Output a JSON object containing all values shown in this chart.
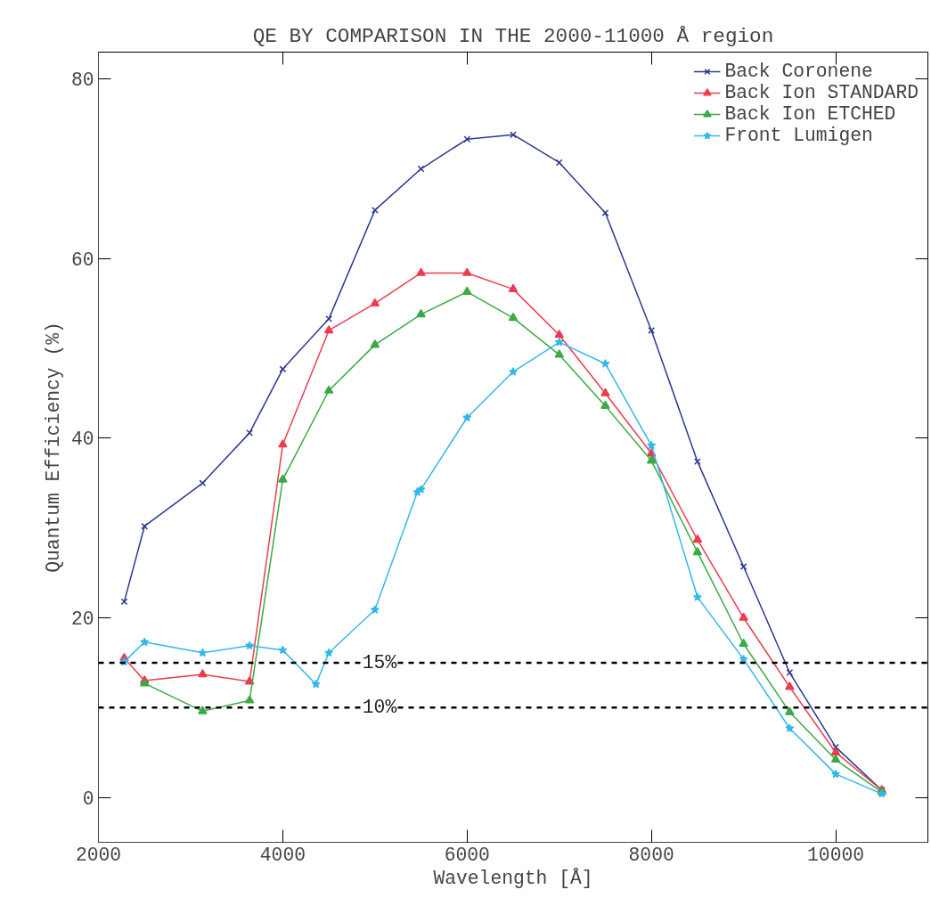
{
  "chart_data": {
    "type": "line",
    "title": "QE BY COMPARISON IN THE 2000-11000 Å region",
    "xlabel": "Wavelength [Å]",
    "ylabel": "Quantum Efficiency (%)",
    "xlim": [
      2000,
      11000
    ],
    "ylim": [
      -5,
      83
    ],
    "xticks": [
      2000,
      4000,
      6000,
      8000,
      10000
    ],
    "yticks": [
      0,
      20,
      40,
      60,
      80
    ],
    "grid": false,
    "legend": "top right",
    "line_style": "solid",
    "series": [
      {
        "name": "Back Coronene",
        "color": "#2b3990",
        "marker": "cross",
        "x": [
          2280,
          2500,
          3130,
          3640,
          4000,
          4500,
          5000,
          5500,
          6000,
          6500,
          7000,
          7500,
          8000,
          8500,
          9000,
          9500,
          10000,
          10500
        ],
        "values": [
          21.8,
          30.2,
          35,
          40.6,
          47.7,
          53.3,
          65.4,
          70,
          73.3,
          73.8,
          70.7,
          65.1,
          52,
          37.4,
          25.7,
          13.9,
          5.6,
          0.8
        ]
      },
      {
        "name": "Back Ion STANDARD",
        "color": "#ee3b4f",
        "marker": "triangle",
        "x": [
          2280,
          2500,
          3130,
          3640,
          4000,
          4500,
          5000,
          5500,
          6000,
          6500,
          7000,
          7500,
          8000,
          8500,
          9000,
          9500,
          10000,
          10500
        ],
        "values": [
          15.5,
          13,
          13.7,
          12.9,
          39.3,
          52,
          55,
          58.4,
          58.4,
          56.6,
          51.5,
          45,
          38.3,
          28.7,
          20,
          12.3,
          5,
          0.8
        ]
      },
      {
        "name": "Back Ion ETCHED",
        "color": "#3aaa45",
        "marker": "triangle",
        "x": [
          2500,
          3130,
          3640,
          4000,
          4500,
          5000,
          5500,
          6000,
          6500,
          7000,
          7500,
          8000,
          8500,
          9000,
          9500,
          10000,
          10500
        ],
        "values": [
          12.7,
          9.6,
          10.8,
          35.4,
          45.3,
          50.4,
          53.8,
          56.3,
          53.4,
          49.3,
          43.6,
          37.5,
          27.3,
          17.1,
          9.5,
          4.2,
          0.6
        ]
      },
      {
        "name": "Front Lumigen",
        "color": "#33b8e8",
        "marker": "star",
        "x": [
          2280,
          2500,
          3130,
          3640,
          4000,
          4360,
          4500,
          5000,
          5460,
          5500,
          6000,
          6500,
          7000,
          7500,
          8000,
          8500,
          9000,
          9500,
          10000,
          10500
        ],
        "values": [
          15.1,
          17.3,
          16.1,
          16.9,
          16.4,
          12.6,
          16.1,
          20.9,
          34,
          34.3,
          42.3,
          47.4,
          50.7,
          48.3,
          39.2,
          22.3,
          15.4,
          7.7,
          2.6,
          0.4
        ]
      }
    ],
    "ref_lines": [
      {
        "axis": "y",
        "value": 15,
        "label": "15%",
        "color": "#000000",
        "line_style": "dashed"
      },
      {
        "axis": "y",
        "value": 10,
        "label": "10%",
        "color": "#000000",
        "line_style": "dashed"
      }
    ]
  }
}
